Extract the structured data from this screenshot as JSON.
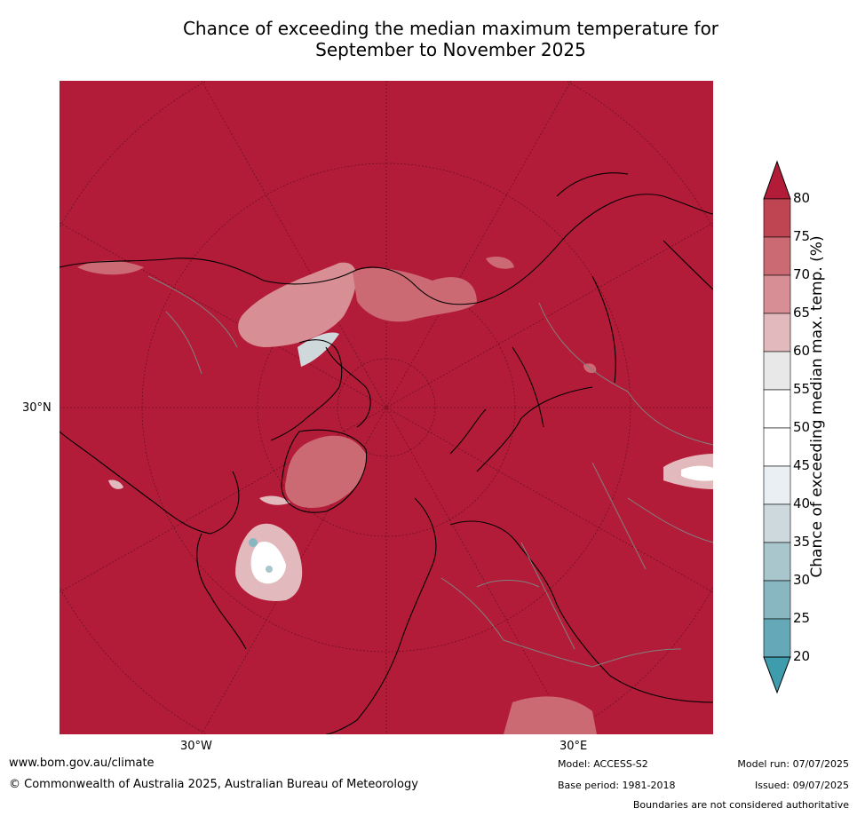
{
  "title_line1": "Chance of exceeding the median maximum temperature for",
  "title_line2": "September to November 2025",
  "map": {
    "lat_label": "30°N",
    "lon_label_west": "30°W",
    "lon_label_east": "30°E",
    "base_color": "#b31c38",
    "coast_color": "#000000",
    "border_color": "#808080"
  },
  "colorbar": {
    "label": "Chance of exceeding median max. temp. (%)",
    "ticks": [
      "80",
      "75",
      "70",
      "65",
      "60",
      "55",
      "50",
      "45",
      "40",
      "35",
      "30",
      "25",
      "20"
    ],
    "colors_top_to_bottom": [
      "#b31c38",
      "#c04553",
      "#cc6a73",
      "#d78e94",
      "#e2babd",
      "#e8e8e8",
      "#ffffff",
      "#ffffff",
      "#e9eff2",
      "#cdd9dc",
      "#a9c6cc",
      "#88b6c1",
      "#65a9b8",
      "#3f9cad"
    ]
  },
  "footer": {
    "website": "www.bom.gov.au/climate",
    "copyright": "© Commonwealth of Australia 2025, Australian Bureau of Meteorology",
    "model": "Model: ACCESS-S2",
    "base_period": "Base period: 1981-2018",
    "model_run": "Model run: 07/07/2025",
    "issued": "Issued: 09/07/2025",
    "disclaimer": "Boundaries are not considered authoritative"
  }
}
